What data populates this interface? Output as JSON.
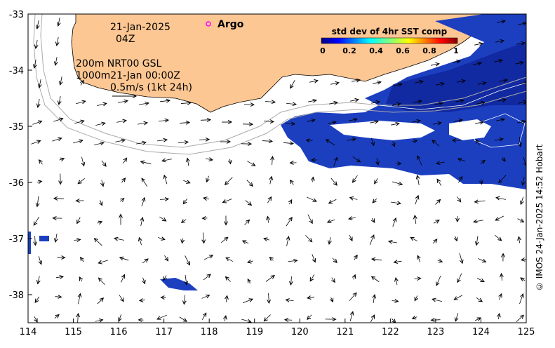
{
  "map": {
    "title_date": "21-Jan-2025",
    "title_hour": "04Z",
    "argo_label": "Argo",
    "legend_line1": "200m  NRT00 GSL",
    "legend_line2": "1000m21-Jan 00:00Z",
    "scale_label": "0.5m/s (1kt 24h)",
    "credit": "© IMOS 24-Jan-2025 14:52 Hobart",
    "colorbar": {
      "title": "std dev of 4hr SST comp",
      "ticks": [
        "0",
        "0.2",
        "0.4",
        "0.6",
        "0.8",
        "1"
      ]
    },
    "axes": {
      "lon_ticks": [
        "114",
        "115",
        "116",
        "117",
        "118",
        "119",
        "120",
        "121",
        "122",
        "123",
        "124",
        "125"
      ],
      "lat_ticks": [
        "-33",
        "-34",
        "-35",
        "-36",
        "-37",
        "-38"
      ],
      "lon_range": [
        114,
        125
      ],
      "lat_range": [
        -38.5,
        -33
      ]
    },
    "colors": {
      "land": "#fdc793",
      "sst_high": "#1c3fc0",
      "sst_low": "#0a1a8c",
      "argo_marker": "#ff00ff"
    }
  }
}
